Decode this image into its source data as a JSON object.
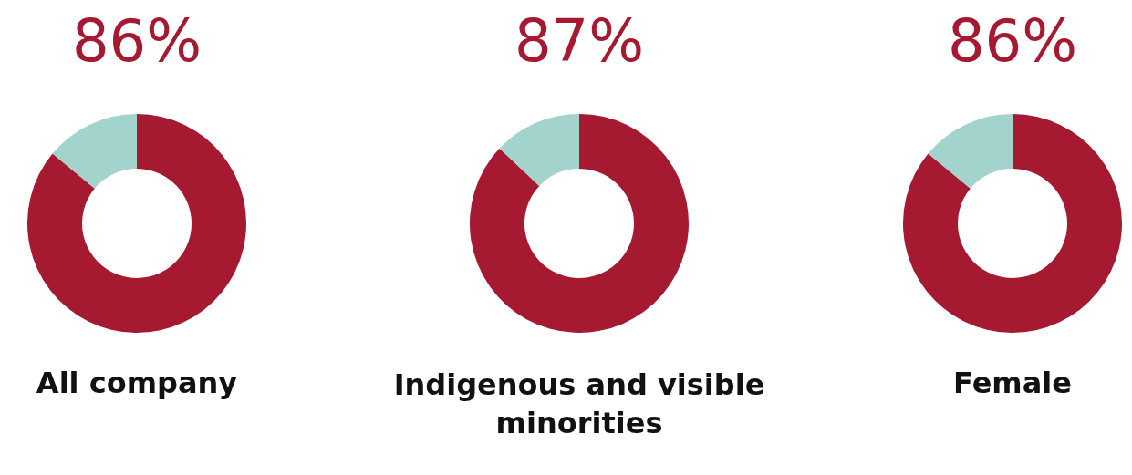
{
  "chart_data": [
    {
      "type": "donut",
      "title": "86%",
      "xlabel": "All company",
      "categories": [
        null,
        null
      ],
      "values": [
        86,
        14
      ],
      "colors": [
        "#a51931",
        "#a3d3cd"
      ]
    },
    {
      "type": "donut",
      "title": "87%",
      "xlabel": "Indigenous and visible minorities",
      "categories": [
        null,
        null
      ],
      "values": [
        87,
        13
      ],
      "colors": [
        "#a51931",
        "#a3d3cd"
      ]
    },
    {
      "type": "donut",
      "title": "86%",
      "xlabel": "Female",
      "categories": [
        null,
        null
      ],
      "values": [
        86,
        14
      ],
      "colors": [
        "#a51931",
        "#a3d3cd"
      ]
    }
  ]
}
